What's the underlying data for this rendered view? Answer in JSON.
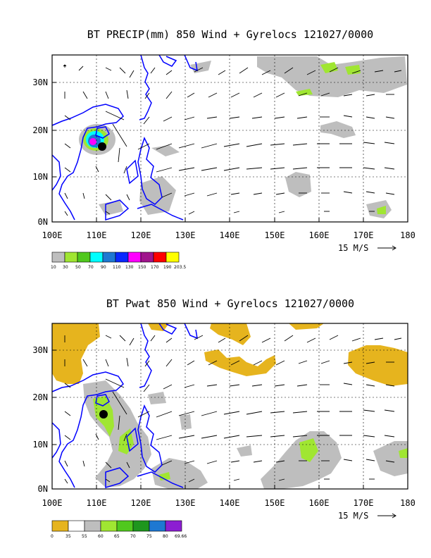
{
  "panels": [
    {
      "title": "BT PRECIP(mm) 850 Wind + Gyrelocs 121027/0000",
      "y_labels": [
        "30N",
        "20N",
        "10N",
        "0N"
      ],
      "x_labels": [
        "100E",
        "110E",
        "120E",
        "130E",
        "140E",
        "150E",
        "160E",
        "170E",
        "180"
      ],
      "vector_ref": "15 M/S",
      "legend_labels": [
        "10",
        "30",
        "50",
        "70",
        "90",
        "110",
        "130",
        "150",
        "170",
        "190",
        "203.5"
      ],
      "legend_colors": [
        "#bebebe",
        "#a0e632",
        "#50c81e",
        "#00ffff",
        "#1e78d2",
        "#0a28ff",
        "#ff00ff",
        "#a0148c",
        "#ff0000",
        "#ffff00"
      ]
    },
    {
      "title": "BT Pwat 850 Wind + Gyrelocs 121027/0000",
      "y_labels": [
        "30N",
        "20N",
        "10N",
        "0N"
      ],
      "x_labels": [
        "100E",
        "110E",
        "120E",
        "130E",
        "140E",
        "150E",
        "160E",
        "170E",
        "180"
      ],
      "vector_ref": "15 M/S",
      "legend_labels": [
        "0",
        "35",
        "55",
        "60",
        "65",
        "70",
        "75",
        "80",
        "69.66"
      ],
      "legend_colors": [
        "#e6b41e",
        "#ffffff",
        "#bebebe",
        "#a0e632",
        "#50c81e",
        "#1e961e",
        "#1e78d2",
        "#8c1ed2"
      ]
    }
  ],
  "colors": {
    "coast": "#0000ff",
    "gray": "#bebebe",
    "gold": "#e6b41e",
    "lightgreen": "#a0e632"
  }
}
